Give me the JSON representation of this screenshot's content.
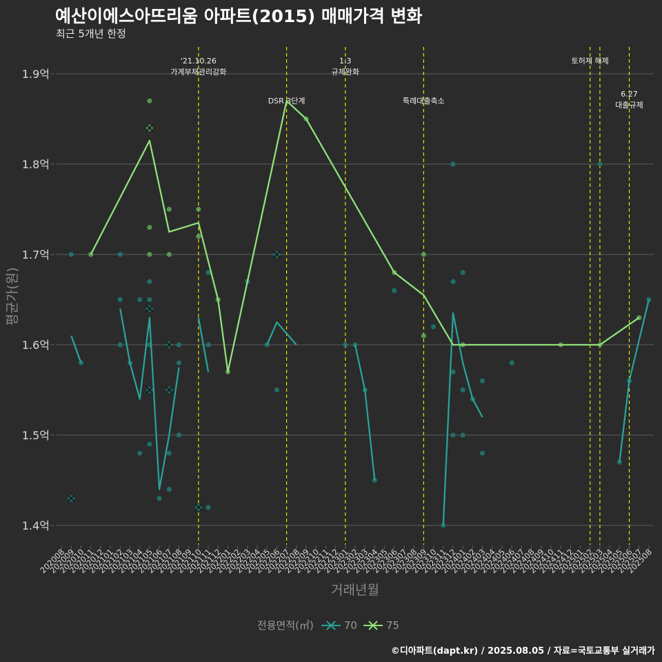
{
  "title": "예산이에스아뜨리움 아파트(2015) 매매가격 변화",
  "subtitle": "최근 5개년 한정",
  "credit": "©디아파트(dapt.kr) / 2025.08.05 / 자료=국토교통부 실거래가",
  "colors": {
    "background": "#2b2b2b",
    "grid": "#5e5e5e",
    "text": "#d9d9d9",
    "muted": "#9a9a9a",
    "vline": "#e5e500",
    "series_70": "#2aa198",
    "series_75": "#8fe07a",
    "dot_70": "#1f7a72",
    "dot_75": "#5fa858"
  },
  "chart_data": {
    "type": "line",
    "title": "예산이에스아뜨리움 아파트(2015) 매매가격 변화",
    "subtitle": "최근 5개년 한정",
    "xlabel": "거래년월",
    "ylabel": "평균가(원)",
    "legend_title": "전용면적(㎡)",
    "legend_position": "bottom",
    "grid": true,
    "ylim": [
      1.38,
      1.93
    ],
    "y_ticks": [
      1.4,
      1.5,
      1.6,
      1.7,
      1.8,
      1.9
    ],
    "y_tick_labels": [
      "1.4억",
      "1.5억",
      "1.6억",
      "1.7억",
      "1.8억",
      "1.9억"
    ],
    "x_categories": [
      "202008",
      "202009",
      "202010",
      "202011",
      "202012",
      "202101",
      "202102",
      "202103",
      "202104",
      "202105",
      "202106",
      "202107",
      "202108",
      "202109",
      "202110",
      "202111",
      "202112",
      "202201",
      "202202",
      "202203",
      "202204",
      "202205",
      "202206",
      "202207",
      "202208",
      "202209",
      "202210",
      "202211",
      "202212",
      "202301",
      "202302",
      "202303",
      "202304",
      "202305",
      "202306",
      "202307",
      "202308",
      "202309",
      "202310",
      "202311",
      "202312",
      "202401",
      "202402",
      "202403",
      "202404",
      "202405",
      "202406",
      "202407",
      "202408",
      "202409",
      "202410",
      "202411",
      "202412",
      "202501",
      "202502",
      "202503",
      "202504",
      "202505",
      "202506",
      "202507",
      "202508"
    ],
    "series": [
      {
        "name": "70",
        "line": [
          {
            "x": "202009",
            "y": 1.61
          },
          {
            "x": "202010",
            "y": 1.58
          },
          null,
          {
            "x": "202102",
            "y": 1.64
          },
          {
            "x": "202103",
            "y": 1.58
          },
          {
            "x": "202104",
            "y": 1.54
          },
          {
            "x": "202105",
            "y": 1.63
          },
          {
            "x": "202106",
            "y": 1.44
          },
          {
            "x": "202107",
            "y": 1.5
          },
          {
            "x": "202108",
            "y": 1.575
          },
          null,
          {
            "x": "202110",
            "y": 1.63
          },
          {
            "x": "202111",
            "y": 1.57
          },
          null,
          {
            "x": "202205",
            "y": 1.6
          },
          {
            "x": "202206",
            "y": 1.625
          },
          {
            "x": "202208",
            "y": 1.6
          },
          null,
          {
            "x": "202302",
            "y": 1.6
          },
          {
            "x": "202303",
            "y": 1.55
          },
          {
            "x": "202304",
            "y": 1.45
          },
          null,
          {
            "x": "202311",
            "y": 1.4
          },
          {
            "x": "202312",
            "y": 1.635
          },
          {
            "x": "202401",
            "y": 1.58
          },
          {
            "x": "202402",
            "y": 1.54
          },
          {
            "x": "202403",
            "y": 1.52
          },
          null,
          {
            "x": "202505",
            "y": 1.47
          },
          {
            "x": "202506",
            "y": 1.56
          },
          {
            "x": "202508",
            "y": 1.65
          }
        ],
        "points": [
          {
            "x": "202009",
            "y": 1.7
          },
          {
            "x": "202010",
            "y": 1.58
          },
          {
            "x": "202102",
            "y": 1.65
          },
          {
            "x": "202102",
            "y": 1.6
          },
          {
            "x": "202102",
            "y": 1.7
          },
          {
            "x": "202103",
            "y": 1.58
          },
          {
            "x": "202104",
            "y": 1.65
          },
          {
            "x": "202104",
            "y": 1.48
          },
          {
            "x": "202105",
            "y": 1.67
          },
          {
            "x": "202105",
            "y": 1.65
          },
          {
            "x": "202105",
            "y": 1.6
          },
          {
            "x": "202105",
            "y": 1.49
          },
          {
            "x": "202106",
            "y": 1.43
          },
          {
            "x": "202107",
            "y": 1.44
          },
          {
            "x": "202107",
            "y": 1.48
          },
          {
            "x": "202108",
            "y": 1.5
          },
          {
            "x": "202108",
            "y": 1.58
          },
          {
            "x": "202108",
            "y": 1.6
          },
          {
            "x": "202111",
            "y": 1.68
          },
          {
            "x": "202111",
            "y": 1.6
          },
          {
            "x": "202111",
            "y": 1.42
          },
          {
            "x": "202203",
            "y": 1.67
          },
          {
            "x": "202205",
            "y": 1.6
          },
          {
            "x": "202206",
            "y": 1.55
          },
          {
            "x": "202301",
            "y": 1.6
          },
          {
            "x": "202302",
            "y": 1.6
          },
          {
            "x": "202303",
            "y": 1.55
          },
          {
            "x": "202304",
            "y": 1.45
          },
          {
            "x": "202306",
            "y": 1.66
          },
          {
            "x": "202310",
            "y": 1.62
          },
          {
            "x": "202311",
            "y": 1.4
          },
          {
            "x": "202312",
            "y": 1.8
          },
          {
            "x": "202312",
            "y": 1.67
          },
          {
            "x": "202312",
            "y": 1.57
          },
          {
            "x": "202312",
            "y": 1.5
          },
          {
            "x": "202401",
            "y": 1.68
          },
          {
            "x": "202401",
            "y": 1.55
          },
          {
            "x": "202401",
            "y": 1.5
          },
          {
            "x": "202402",
            "y": 1.54
          },
          {
            "x": "202403",
            "y": 1.56
          },
          {
            "x": "202403",
            "y": 1.48
          },
          {
            "x": "202406",
            "y": 1.58
          },
          {
            "x": "202503",
            "y": 1.8
          },
          {
            "x": "202505",
            "y": 1.47
          },
          {
            "x": "202506",
            "y": 1.56
          },
          {
            "x": "202508",
            "y": 1.65
          }
        ],
        "cross_points": [
          {
            "x": "202009",
            "y": 1.43
          },
          {
            "x": "202105",
            "y": 1.64
          },
          {
            "x": "202105",
            "y": 1.55
          },
          {
            "x": "202107",
            "y": 1.55
          },
          {
            "x": "202107",
            "y": 1.6
          },
          {
            "x": "202110",
            "y": 1.42
          },
          {
            "x": "202206",
            "y": 1.7
          }
        ]
      },
      {
        "name": "75",
        "line": [
          {
            "x": "202011",
            "y": 1.7
          },
          {
            "x": "202105",
            "y": 1.826
          },
          {
            "x": "202107",
            "y": 1.725
          },
          {
            "x": "202110",
            "y": 1.735
          },
          {
            "x": "202112",
            "y": 1.65
          },
          {
            "x": "202201",
            "y": 1.57
          },
          {
            "x": "202207",
            "y": 1.87
          },
          {
            "x": "202209",
            "y": 1.85
          },
          {
            "x": "202306",
            "y": 1.68
          },
          {
            "x": "202309",
            "y": 1.655
          },
          {
            "x": "202312",
            "y": 1.6
          },
          {
            "x": "202503",
            "y": 1.6
          },
          {
            "x": "202507",
            "y": 1.63
          }
        ],
        "points": [
          {
            "x": "202011",
            "y": 1.7
          },
          {
            "x": "202105",
            "y": 1.87
          },
          {
            "x": "202105",
            "y": 1.73
          },
          {
            "x": "202105",
            "y": 1.7
          },
          {
            "x": "202107",
            "y": 1.75
          },
          {
            "x": "202107",
            "y": 1.7
          },
          {
            "x": "202110",
            "y": 1.75
          },
          {
            "x": "202110",
            "y": 1.72
          },
          {
            "x": "202112",
            "y": 1.65
          },
          {
            "x": "202201",
            "y": 1.57
          },
          {
            "x": "202209",
            "y": 1.85
          },
          {
            "x": "202306",
            "y": 1.68
          },
          {
            "x": "202309",
            "y": 1.7
          },
          {
            "x": "202309",
            "y": 1.61
          },
          {
            "x": "202401",
            "y": 1.6
          },
          {
            "x": "202411",
            "y": 1.6
          },
          {
            "x": "202503",
            "y": 1.6
          },
          {
            "x": "202507",
            "y": 1.63
          }
        ],
        "cross_points": [
          {
            "x": "202105",
            "y": 1.84
          }
        ]
      }
    ],
    "events": [
      {
        "x": "202110",
        "line1": "'21.10.26",
        "line2": "가계부채관리강화",
        "row": 0
      },
      {
        "x": "202207",
        "line1": "DSR 3단계",
        "line2": "",
        "row": 1
      },
      {
        "x": "202301",
        "line1": "1.3",
        "line2": "규제완화",
        "row": 0
      },
      {
        "x": "202309",
        "line1": "특례대출축소",
        "line2": "",
        "row": 1
      },
      {
        "x": "202502",
        "line1": "토허제 해제",
        "line2": "",
        "row": 0
      },
      {
        "x": "202503",
        "line1": "",
        "line2": "",
        "row": 0
      },
      {
        "x": "202506",
        "line1": "6.27",
        "line2": "대출규제",
        "row": 2
      }
    ]
  }
}
